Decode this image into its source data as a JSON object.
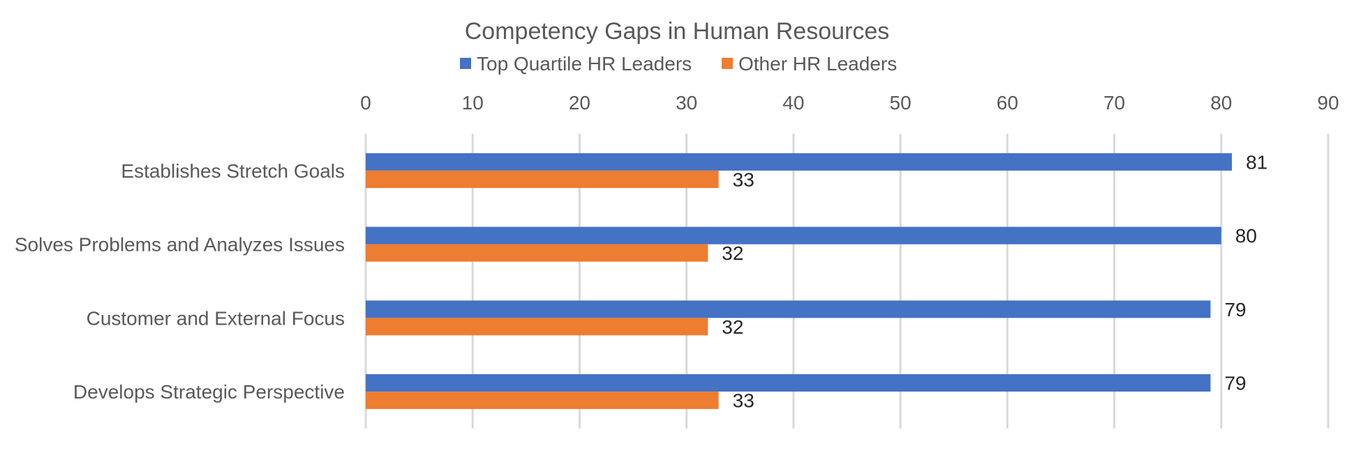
{
  "chart_data": {
    "type": "bar",
    "orientation": "horizontal",
    "title": "Competency Gaps in Human Resources",
    "categories": [
      "Establishes Stretch Goals",
      "Solves Problems and Analyzes Issues",
      "Customer and External Focus",
      "Develops Strategic Perspective"
    ],
    "series": [
      {
        "name": "Top Quartile HR Leaders",
        "color": "#4472C4",
        "values": [
          81,
          80,
          79,
          79
        ]
      },
      {
        "name": "Other HR Leaders",
        "color": "#ED7D31",
        "values": [
          33,
          32,
          32,
          33
        ]
      }
    ],
    "xlim": [
      0,
      90
    ],
    "xticks": [
      0,
      10,
      20,
      30,
      40,
      50,
      60,
      70,
      80,
      90
    ],
    "xaxis_position": "top",
    "grid": true,
    "legend_position": "top",
    "xlabel": "",
    "ylabel": ""
  }
}
